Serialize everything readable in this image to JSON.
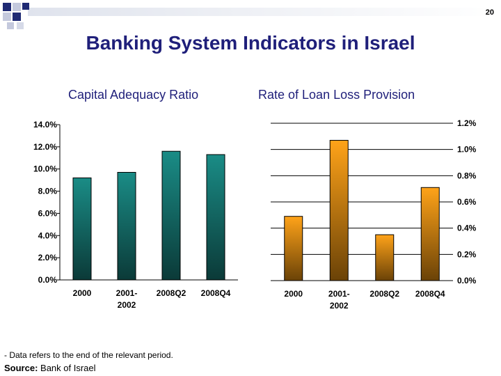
{
  "page_number": "20",
  "title": "Banking System Indicators in Israel",
  "footnote": "- Data refers to the end of the relevant period.",
  "source": {
    "label": "Source:",
    "text": " Bank of Israel"
  },
  "colors": {
    "title": "#1f1f7a",
    "capital_bar_top": "#1a8c86",
    "capital_bar_bottom": "#0b3a38",
    "loss_bar_top": "#ffa319",
    "loss_bar_bottom": "#6a4207"
  },
  "chart_data": [
    {
      "type": "bar",
      "title": "Capital Adequacy Ratio",
      "categories": [
        "2000",
        "2001-\n2002",
        "2008Q2",
        "2008Q4"
      ],
      "values": [
        9.2,
        9.7,
        11.6,
        11.3
      ],
      "ylim": [
        0,
        14
      ],
      "yticks": [
        "0.0%",
        "2.0%",
        "4.0%",
        "6.0%",
        "8.0%",
        "10.0%",
        "12.0%",
        "14.0%"
      ],
      "axis_side": "left",
      "grid": false
    },
    {
      "type": "bar",
      "title": "Rate of Loan Loss Provision",
      "categories": [
        "2000",
        "2001-\n2002",
        "2008Q2",
        "2008Q4"
      ],
      "values": [
        0.49,
        1.07,
        0.35,
        0.71
      ],
      "ylim": [
        0,
        1.2
      ],
      "yticks": [
        "0.0%",
        "0.2%",
        "0.4%",
        "0.6%",
        "0.8%",
        "1.0%",
        "1.2%"
      ],
      "axis_side": "right",
      "grid": true
    }
  ]
}
